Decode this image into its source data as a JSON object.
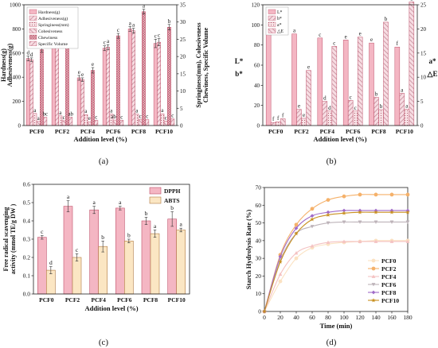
{
  "panels": {
    "a": "(a)",
    "b": "(b)",
    "c": "(c)",
    "d": "(d)"
  },
  "colors": {
    "pink_bar": "#f4b6c3",
    "pink_edge": "#c0506a",
    "hatch": "#c48a98",
    "cream_bar": "#fbe6c3",
    "cream_edge": "#b07a40"
  },
  "chart_data": [
    {
      "panel": "a",
      "type": "bar",
      "categories": [
        "PCF0",
        "PCF2",
        "PCF4",
        "PCF6",
        "PCF8",
        "PCF10"
      ],
      "xlabel": "Addition level (%)",
      "ylabel_left": [
        "Hardness(g)",
        "Adhesiveness(g)"
      ],
      "ylabel_right": [
        "Springiness(mm), Cohesiveness",
        "Chewiness, Specific Volume"
      ],
      "ylim_left": [
        0,
        1000
      ],
      "yticks_left": [
        "0",
        "200",
        "400",
        "600",
        "800",
        "1000"
      ],
      "ylim_right": [
        0,
        35
      ],
      "yticks_right": [
        "0",
        "5",
        "10",
        "15",
        "20",
        "25",
        "30",
        "35"
      ],
      "series": [
        {
          "name": "Hardness(g)",
          "axis": "left",
          "values": [
            555,
            740,
            395,
            640,
            800,
            680
          ],
          "errors": [
            20,
            25,
            20,
            20,
            20,
            35
          ],
          "letters": [
            "d",
            "b",
            "e",
            "c",
            "a",
            "c"
          ]
        },
        {
          "name": "Adhesiveness(g)",
          "axis": "left",
          "values": [
            545,
            755,
            380,
            650,
            785,
            690
          ],
          "errors": [
            15,
            20,
            15,
            20,
            20,
            30
          ],
          "letters": [
            "d",
            "b",
            "e",
            "a",
            "a",
            "c"
          ]
        },
        {
          "name": "Springiness(mm)",
          "axis": "right",
          "values": [
            3.5,
            2.8,
            3.2,
            3.3,
            3.3,
            3.4
          ],
          "letters": [
            "a",
            "a",
            "a",
            "a",
            "a",
            "a"
          ]
        },
        {
          "name": "Cohesiveness",
          "axis": "right",
          "values": [
            1.2,
            1.4,
            1.1,
            1.6,
            1.7,
            1.3
          ],
          "letters": [
            "a",
            "c",
            "e",
            "abc",
            "c",
            "c"
          ]
        },
        {
          "name": "Chewiness",
          "axis": "right",
          "values": [
            22,
            31,
            16,
            26,
            33,
            28.5
          ],
          "errors": [
            0.8,
            1.0,
            0.8,
            0.7,
            0.7,
            0.8
          ],
          "letters": [
            "d",
            "a",
            "e",
            "c",
            "a",
            "b"
          ]
        },
        {
          "name": "Specific Volume",
          "axis": "right",
          "values": [
            2.4,
            2.4,
            1.5,
            1.5,
            1.7,
            1.9
          ],
          "letters": [
            "bc",
            "ab",
            "c",
            "c",
            "c",
            "c"
          ]
        }
      ]
    },
    {
      "panel": "b",
      "type": "bar",
      "categories": [
        "PCF0",
        "PCF2",
        "PCF4",
        "PCF6",
        "PCF8",
        "PCF10"
      ],
      "xlabel": "Addition level (%)",
      "ylabel_left": [
        "L*",
        "b*"
      ],
      "ylabel_right": [
        "a*",
        "△E"
      ],
      "ylim_left": [
        0,
        120
      ],
      "yticks_left": [
        "0",
        "20",
        "40",
        "60",
        "80",
        "100",
        "120"
      ],
      "ylim_right": [
        0,
        25
      ],
      "yticks_right": [
        "0",
        "5",
        "10",
        "15",
        "20",
        "25"
      ],
      "series": [
        {
          "name": "L*",
          "axis": "left",
          "values": [
            96,
            91,
            87,
            85,
            82,
            78
          ],
          "letters": [
            "a",
            "a",
            "c",
            "e",
            "e",
            "f"
          ]
        },
        {
          "name": "b*",
          "axis": "left",
          "values": [
            3,
            16,
            24,
            25,
            28,
            32
          ],
          "letters": [
            "f",
            "e",
            "d",
            "c",
            "b",
            "a"
          ]
        },
        {
          "name": "a*",
          "axis": "right",
          "values": [
            0.8,
            1.5,
            3.0,
            3.0,
            3.3,
            3.4
          ],
          "letters": [
            "f",
            "e",
            "d",
            "c",
            "b",
            "a"
          ]
        },
        {
          "name": "△E",
          "axis": "right",
          "values": [
            1.4,
            11.4,
            16.4,
            18.3,
            21.4,
            25.6
          ],
          "letters": [
            "f",
            "e",
            "c",
            "e",
            "b",
            "a"
          ]
        }
      ]
    },
    {
      "panel": "c",
      "type": "bar",
      "categories": [
        "PCF0",
        "PCF2",
        "PCF4",
        "PCF6",
        "PCF8",
        "PCF10"
      ],
      "xlabel": "Addition level (%)",
      "ylabel": [
        "Free radical scavenging",
        "activity (mmol TE/g DW )"
      ],
      "ylim": [
        0,
        0.6
      ],
      "yticks": [
        "0.0",
        "0.1",
        "0.2",
        "0.3",
        "0.4",
        "0.5",
        "0.6"
      ],
      "series": [
        {
          "name": "DPPH",
          "values": [
            0.31,
            0.48,
            0.46,
            0.47,
            0.4,
            0.41
          ],
          "errors": [
            0.01,
            0.03,
            0.02,
            0.01,
            0.02,
            0.04
          ],
          "letters": [
            "c",
            "a",
            "a",
            "a",
            "b",
            "b"
          ]
        },
        {
          "name": "ABTS",
          "values": [
            0.13,
            0.2,
            0.26,
            0.29,
            0.33,
            0.35
          ],
          "errors": [
            0.02,
            0.02,
            0.03,
            0.01,
            0.02,
            0.01
          ],
          "letters": [
            "d",
            "c",
            "b",
            "b",
            "a",
            "a"
          ]
        }
      ]
    },
    {
      "panel": "d",
      "type": "line",
      "xlabel": "Time (min)",
      "ylabel": "Starch Hydrolysis Rate (%)",
      "xlim": [
        0,
        180
      ],
      "ylim": [
        0,
        70
      ],
      "xticks": [
        "0",
        "20",
        "40",
        "60",
        "80",
        "100",
        "120",
        "140",
        "160",
        "180"
      ],
      "yticks": [
        "0",
        "10",
        "20",
        "30",
        "40",
        "50",
        "60",
        "70"
      ],
      "x": [
        0,
        20,
        40,
        60,
        80,
        100,
        120,
        140,
        160,
        180
      ],
      "series": [
        {
          "name": "PCF0",
          "color": "#fbe2c2",
          "marker": "circle",
          "values": [
            0,
            17,
            30,
            36,
            38,
            39,
            39.5,
            40,
            40,
            40
          ]
        },
        {
          "name": "PCF2",
          "color": "#f5b16a",
          "marker": "circle",
          "values": [
            0,
            32,
            49,
            58,
            63,
            65,
            66,
            66,
            66,
            66
          ]
        },
        {
          "name": "PCF4",
          "color": "#f4c2c2",
          "marker": "tri-up",
          "values": [
            0,
            21,
            33,
            37,
            39,
            39.5,
            39.5,
            39.5,
            39.5,
            39.5
          ]
        },
        {
          "name": "PCF6",
          "color": "#bdb3b9",
          "marker": "tri-down",
          "values": [
            0,
            29,
            44,
            48,
            50,
            50.5,
            50.5,
            50.5,
            50.5,
            50.5
          ]
        },
        {
          "name": "PCF8",
          "color": "#a06ac8",
          "marker": "diamond",
          "values": [
            0,
            31,
            47,
            54,
            56,
            57,
            57,
            57,
            57,
            57
          ]
        },
        {
          "name": "PCF10",
          "color": "#c89020",
          "marker": "star",
          "values": [
            0,
            28,
            44,
            52,
            54.5,
            55.5,
            56,
            56,
            56,
            56
          ]
        }
      ]
    }
  ]
}
